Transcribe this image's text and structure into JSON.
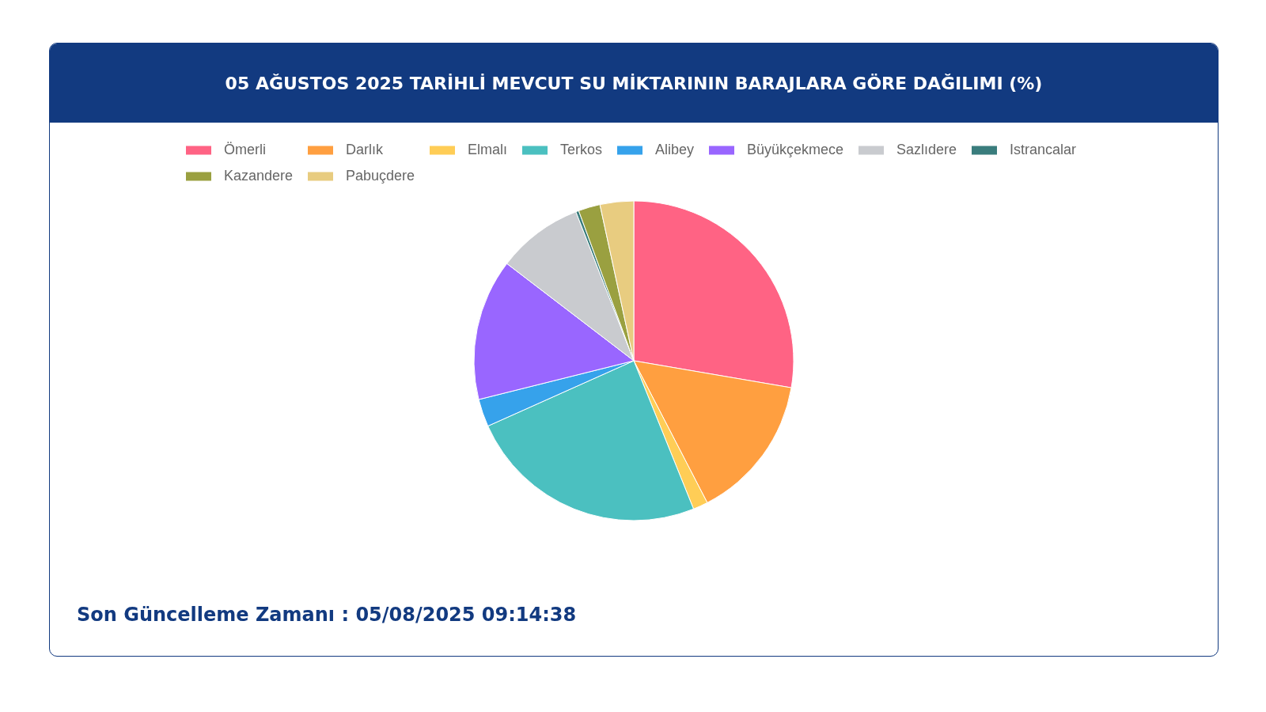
{
  "chart_data": {
    "type": "pie",
    "title": "05 AĞUSTOS 2025 TARİHLİ MEVCUT SU MİKTARININ BARAJLARA GÖRE DAĞILIMI (%)",
    "categories": [
      "Ömerli",
      "Darlık",
      "Elmalı",
      "Terkos",
      "Alibey",
      "Büyükçekmece",
      "Sazlıdere",
      "Istrancalar",
      "Kazandere",
      "Pabuçdere"
    ],
    "values": [
      27.7,
      14.7,
      1.5,
      24.4,
      2.8,
      14.3,
      8.7,
      0.3,
      2.2,
      3.4
    ],
    "colors": [
      "#ff6384",
      "#ff9f40",
      "#ffcd56",
      "#4bc0c0",
      "#36a2eb",
      "#9966ff",
      "#c9cbcf",
      "#3a7d7d",
      "#9aa040",
      "#e8cc80"
    ],
    "legend": "top",
    "annotations": [
      "Son Güncelleme Zamanı : 05/08/2025 09:14:38"
    ]
  }
}
